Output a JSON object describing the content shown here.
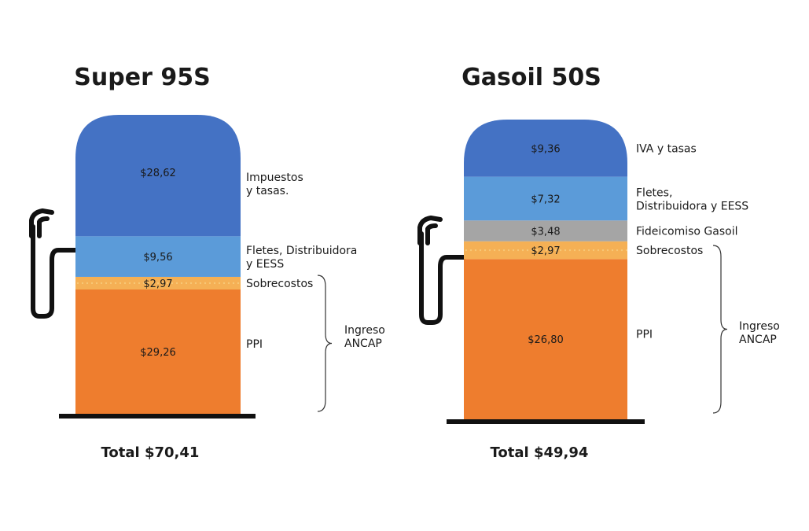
{
  "chart_data": [
    {
      "type": "bar",
      "title": "Super 95S",
      "total_label": "Total $70,41",
      "group_label": [
        "Ingreso",
        "ANCAP"
      ],
      "segments": [
        {
          "value": 29.26,
          "value_label": "$29,26",
          "label": [
            "PPI"
          ],
          "color": "#ee7d2e"
        },
        {
          "value": 2.97,
          "value_label": "$2,97",
          "label": [
            "Sobrecostos"
          ],
          "color": "#f5b055"
        },
        {
          "value": 9.56,
          "value_label": "$9,56",
          "label": [
            "Fletes, Distribuidora",
            "y EESS"
          ],
          "color": "#5b9bd9"
        },
        {
          "value": 28.62,
          "value_label": "$28,62",
          "label": [
            "Impuestos",
            "y tasas."
          ],
          "color": "#4472c4"
        }
      ]
    },
    {
      "type": "bar",
      "title": "Gasoil 50S",
      "total_label": "Total $49,94",
      "group_label": [
        "Ingreso",
        "ANCAP"
      ],
      "segments": [
        {
          "value": 26.8,
          "value_label": "$26,80",
          "label": [
            "PPI"
          ],
          "color": "#ee7d2e"
        },
        {
          "value": 2.97,
          "value_label": "$2,97",
          "label": [
            "Sobrecostos"
          ],
          "color": "#f5b055"
        },
        {
          "value": 3.48,
          "value_label": "$3,48",
          "label": [
            "Fideicomiso Gasoil"
          ],
          "color": "#a5a5a5"
        },
        {
          "value": 7.32,
          "value_label": "$7,32",
          "label": [
            "Fletes,",
            "Distribuidora y EESS"
          ],
          "color": "#5b9bd9"
        },
        {
          "value": 9.36,
          "value_label": "$9,36",
          "label": [
            "IVA y tasas"
          ],
          "color": "#4472c4"
        }
      ]
    }
  ]
}
